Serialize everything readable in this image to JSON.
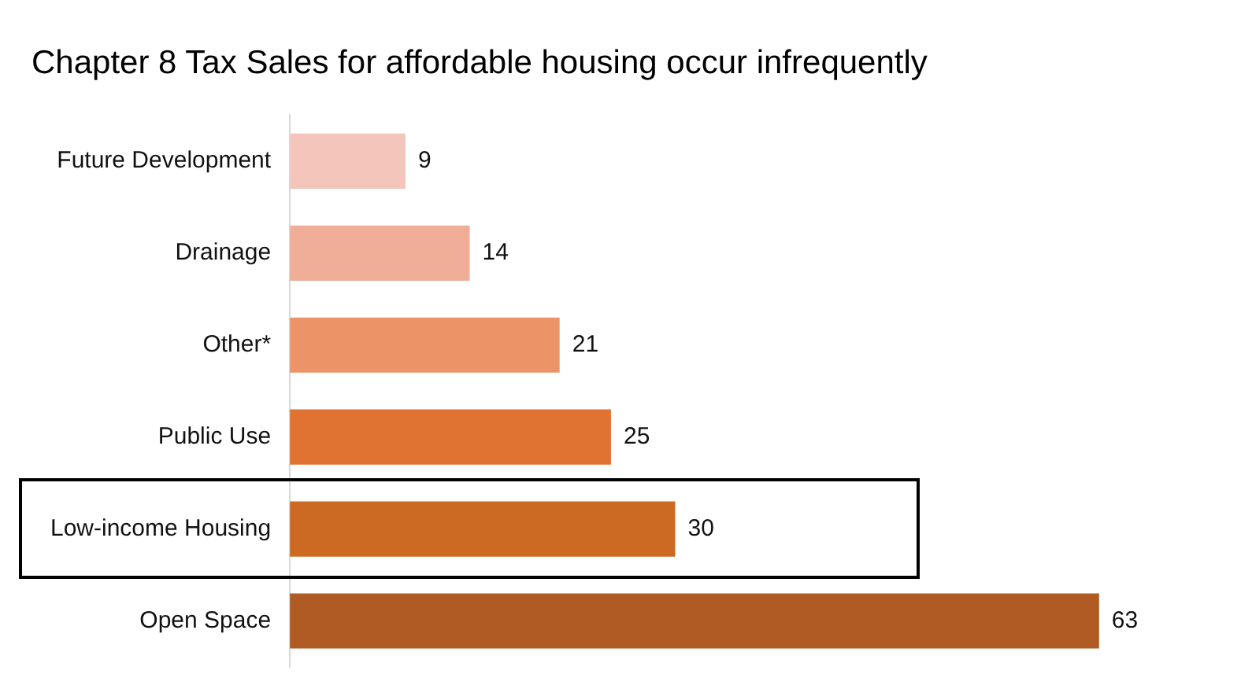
{
  "chart_data": {
    "type": "bar",
    "orientation": "horizontal",
    "title": "Chapter 8 Tax Sales for affordable housing occur infrequently",
    "categories": [
      "Future Development",
      "Drainage",
      "Other*",
      "Public Use",
      "Low-income Housing",
      "Open Space"
    ],
    "values": [
      9,
      14,
      21,
      25,
      30,
      63
    ],
    "colors": [
      "#f4c6bb",
      "#f0ae99",
      "#ec9467",
      "#e07332",
      "#cc6a24",
      "#b05a24"
    ],
    "data_labels": true,
    "grid": false,
    "legend": false
  }
}
